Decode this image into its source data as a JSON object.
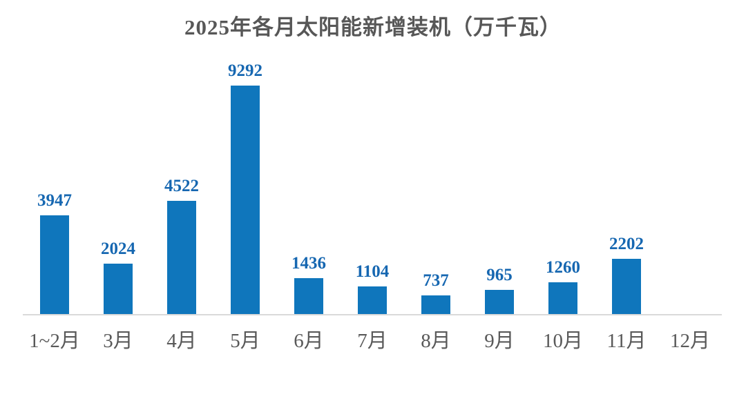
{
  "title": "2025年各月太阳能新增装机（万千瓦）",
  "chart_data": {
    "type": "bar",
    "title": "2025年各月太阳能新增装机（万千瓦）",
    "categories": [
      "1~2月",
      "3月",
      "4月",
      "5月",
      "6月",
      "7月",
      "8月",
      "9月",
      "10月",
      "11月",
      "12月"
    ],
    "values": [
      3947,
      2024,
      4522,
      9292,
      1436,
      1104,
      737,
      965,
      1260,
      2202,
      null
    ],
    "xlabel": "",
    "ylabel": "",
    "ylim": [
      0,
      10000
    ],
    "grid": false,
    "legend": false,
    "data_labels": true,
    "note": "12月 has no bar and no data label",
    "colors": {
      "bar": "#0F76BC",
      "value_label": "#1667B1",
      "category_label": "#595959",
      "title": "#575757",
      "axis_line": "#D9D9D9",
      "background": "#FFFFFF"
    }
  }
}
